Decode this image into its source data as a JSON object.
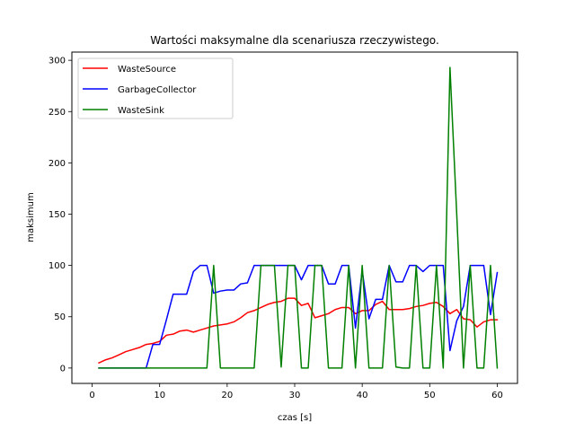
{
  "chart_data": {
    "type": "line",
    "title": "Wartości maksymalne dla scenariusza rzeczywistego.",
    "xlabel": "czas [s]",
    "ylabel": "maksimum",
    "xlim": [
      -3,
      63
    ],
    "ylim": [
      -15,
      308
    ],
    "xticks": [
      0,
      10,
      20,
      30,
      40,
      50,
      60
    ],
    "yticks": [
      0,
      50,
      100,
      150,
      200,
      250,
      300
    ],
    "grid": false,
    "legend_position": "top-left",
    "x": [
      1,
      2,
      3,
      4,
      5,
      6,
      7,
      8,
      9,
      10,
      11,
      12,
      13,
      14,
      15,
      16,
      17,
      18,
      19,
      20,
      21,
      22,
      23,
      24,
      25,
      26,
      27,
      28,
      29,
      30,
      31,
      32,
      33,
      34,
      35,
      36,
      37,
      38,
      39,
      40,
      41,
      42,
      43,
      44,
      45,
      46,
      47,
      48,
      49,
      50,
      51,
      52,
      53,
      54,
      55,
      56,
      57,
      58,
      59,
      60
    ],
    "series": [
      {
        "name": "WasteSource",
        "color": "#ff0000",
        "values": [
          5,
          8,
          10,
          13,
          16,
          18,
          20,
          23,
          24,
          26,
          32,
          33,
          36,
          37,
          35,
          37,
          39,
          41,
          42,
          43,
          45,
          49,
          54,
          56,
          59,
          62,
          64,
          65,
          68,
          68,
          61,
          63,
          49,
          51,
          53,
          57,
          59,
          59,
          53,
          56,
          56,
          62,
          65,
          57,
          57,
          57,
          58,
          60,
          61,
          63,
          64,
          60,
          53,
          57,
          48,
          47,
          40,
          45,
          47,
          47
        ]
      },
      {
        "name": "GarbageCollector",
        "color": "#0000ff",
        "values": [
          0,
          0,
          0,
          0,
          0,
          0,
          0,
          0,
          23,
          23,
          47,
          72,
          72,
          72,
          94,
          100,
          100,
          73,
          75,
          76,
          76,
          82,
          83,
          100,
          100,
          100,
          100,
          100,
          100,
          100,
          86,
          100,
          100,
          100,
          82,
          82,
          100,
          100,
          39,
          95,
          48,
          67,
          67,
          100,
          84,
          84,
          100,
          100,
          94,
          100,
          100,
          100,
          17,
          46,
          60,
          100,
          100,
          100,
          52,
          93
        ]
      },
      {
        "name": "WasteSink",
        "color": "#008000",
        "values": [
          0,
          0,
          0,
          0,
          0,
          0,
          0,
          0,
          0,
          0,
          0,
          0,
          0,
          0,
          0,
          0,
          0,
          100,
          0,
          0,
          0,
          0,
          0,
          0,
          100,
          100,
          100,
          1,
          100,
          100,
          0,
          0,
          100,
          100,
          0,
          0,
          0,
          100,
          0,
          100,
          0,
          0,
          0,
          100,
          1,
          0,
          0,
          100,
          0,
          0,
          100,
          0,
          293,
          150,
          0,
          100,
          0,
          0,
          100,
          0
        ]
      }
    ]
  }
}
